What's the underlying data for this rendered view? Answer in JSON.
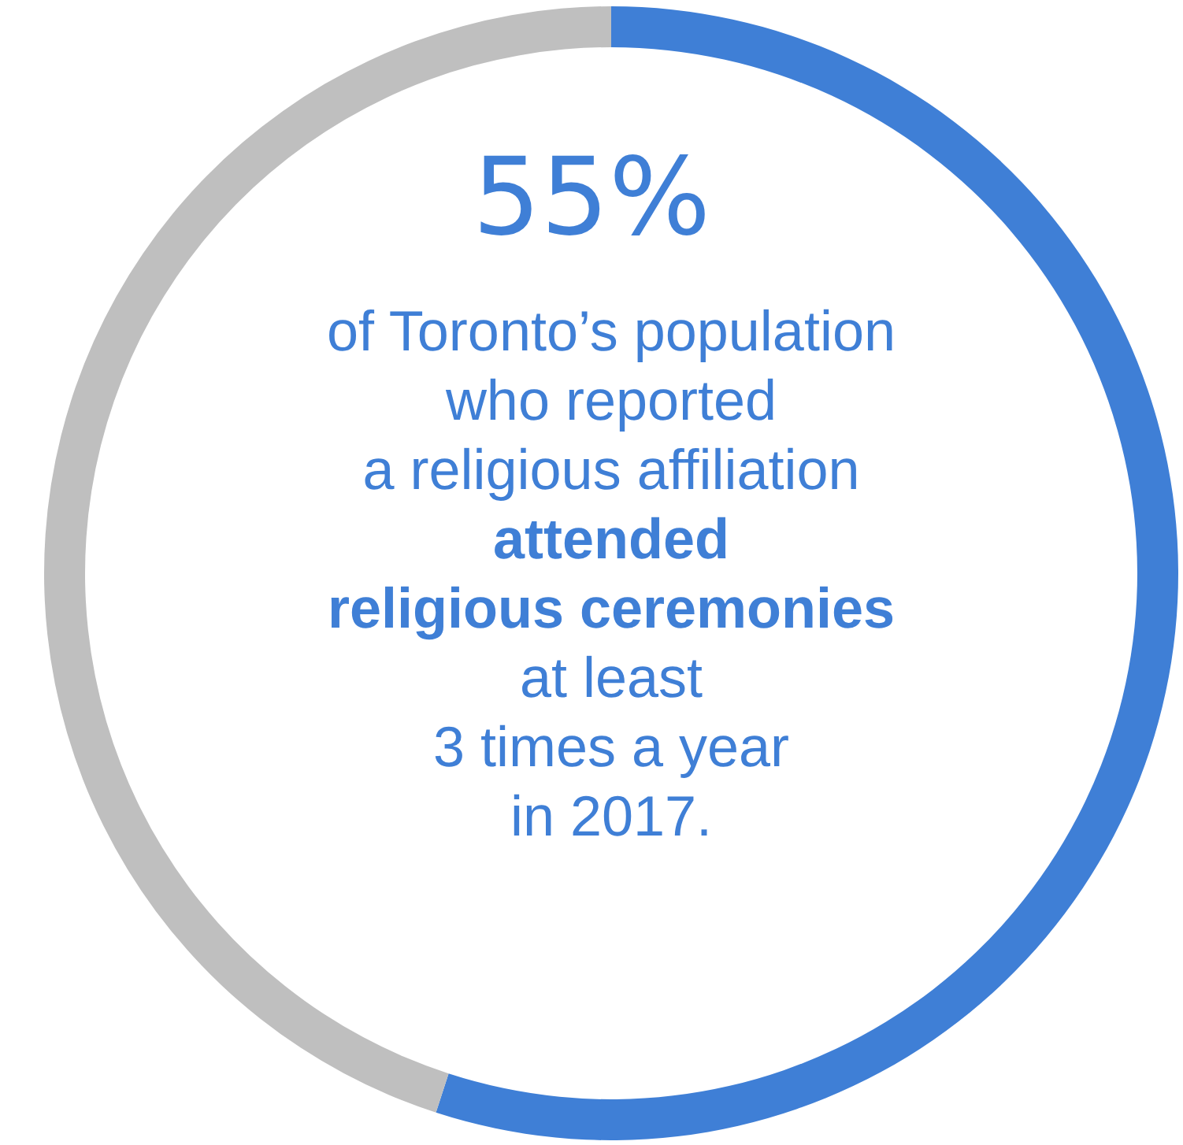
{
  "chart_data": {
    "type": "donut",
    "categories": [
      null,
      null
    ],
    "values": [
      55,
      45
    ],
    "colors": [
      "#3f7fd6",
      "#bfbfbf"
    ],
    "value_labels": [
      "55%",
      null
    ],
    "annotations": [
      "of Toronto’s population\nwho reported\na religious affiliation",
      "attended\nreligious ceremonies",
      "at least\n3 times a year\nin 2017."
    ]
  }
}
